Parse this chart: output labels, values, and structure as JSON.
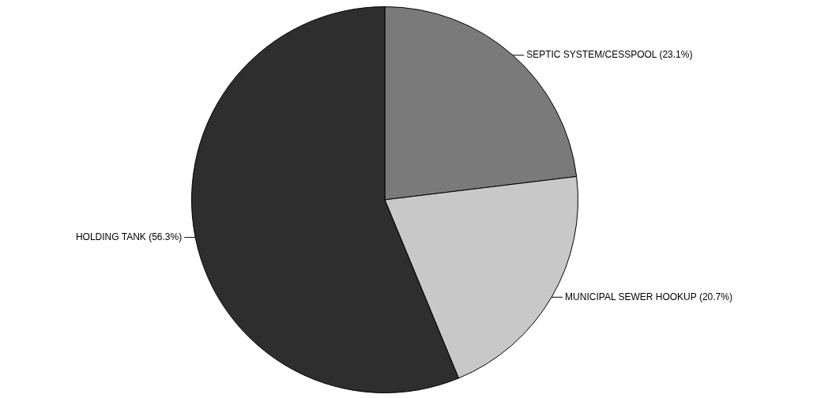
{
  "chart_data": {
    "type": "pie",
    "categories": [
      "SEPTIC SYSTEM/CESSPOOL",
      "MUNICIPAL SEWER HOOKUP",
      "HOLDING TANK"
    ],
    "values": [
      23.1,
      20.7,
      56.3
    ],
    "value_labels": [
      "(23.1%)",
      "(20.7%)",
      "(56.3%)"
    ],
    "colors": [
      "#7a7a7a",
      "#c8c8c8",
      "#2e2e2e"
    ],
    "legend": false
  }
}
